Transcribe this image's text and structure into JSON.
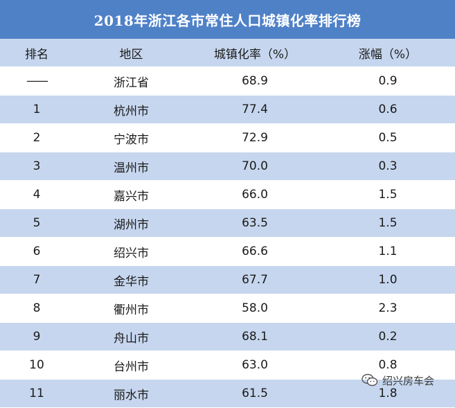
{
  "title": "2018年浙江各市常住人口城镇化率排行榜",
  "headers": [
    "排名",
    "地区",
    "城镇化率（%）",
    "涨幅（%）"
  ],
  "rows": [
    {
      "rank": "——",
      "region": "浙江省",
      "rate": "68.9",
      "growth": "0.9"
    },
    {
      "rank": "1",
      "region": "杭州市",
      "rate": "77.4",
      "growth": "0.6"
    },
    {
      "rank": "2",
      "region": "宁波市",
      "rate": "72.9",
      "growth": "0.5"
    },
    {
      "rank": "3",
      "region": "温州市",
      "rate": "70.0",
      "growth": "0.3"
    },
    {
      "rank": "4",
      "region": "嘉兴市",
      "rate": "66.0",
      "growth": "1.5"
    },
    {
      "rank": "5",
      "region": "湖州市",
      "rate": "63.5",
      "growth": "1.5"
    },
    {
      "rank": "6",
      "region": "绍兴市",
      "rate": "66.6",
      "growth": "1.1"
    },
    {
      "rank": "7",
      "region": "金华市",
      "rate": "67.7",
      "growth": "1.0"
    },
    {
      "rank": "8",
      "region": "衢州市",
      "rate": "58.0",
      "growth": "2.3"
    },
    {
      "rank": "9",
      "region": "舟山市",
      "rate": "68.1",
      "growth": "0.2"
    },
    {
      "rank": "10",
      "region": "台州市",
      "rate": "63.0",
      "growth": "0.8"
    },
    {
      "rank": "11",
      "region": "丽水市",
      "rate": "61.5",
      "growth": "1.8"
    }
  ],
  "watermark": {
    "text": "绍兴房车会",
    "icon": "wechat-icon"
  },
  "colors": {
    "header": "#4f81c7",
    "stripe": "#c6d6ee"
  }
}
